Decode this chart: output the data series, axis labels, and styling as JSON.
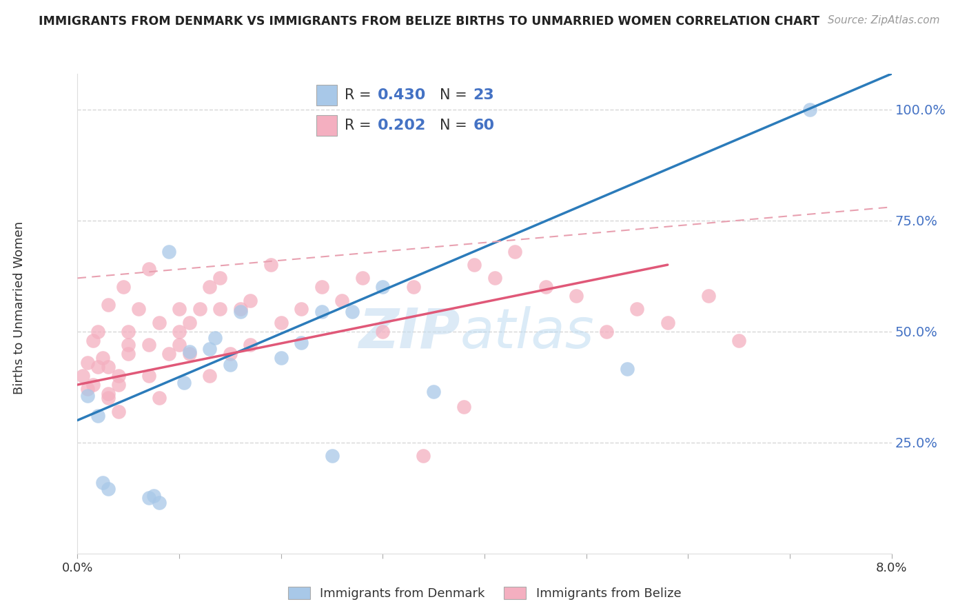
{
  "title": "IMMIGRANTS FROM DENMARK VS IMMIGRANTS FROM BELIZE BIRTHS TO UNMARRIED WOMEN CORRELATION CHART",
  "source": "Source: ZipAtlas.com",
  "ylabel": "Births to Unmarried Women",
  "xlabel_bottom_left": "0.0%",
  "xlabel_bottom_right": "8.0%",
  "xlim": [
    0.0,
    0.08
  ],
  "ylim": [
    0.0,
    1.08
  ],
  "yticks": [
    0.25,
    0.5,
    0.75,
    1.0
  ],
  "ytick_labels": [
    "25.0%",
    "50.0%",
    "75.0%",
    "100.0%"
  ],
  "legend_r1": "0.430",
  "legend_n1": "23",
  "legend_r2": "0.202",
  "legend_n2": "60",
  "legend_label1": "Immigrants from Denmark",
  "legend_label2": "Immigrants from Belize",
  "color_denmark": "#a8c8e8",
  "color_belize": "#f4afc0",
  "trendline_color_denmark": "#2b7bba",
  "trendline_color_belize": "#e05878",
  "trendline_color_belize_dashed": "#e8a0b0",
  "watermark_zip": "ZIP",
  "watermark_atlas": "atlas",
  "denmark_x": [
    0.001,
    0.002,
    0.0025,
    0.003,
    0.007,
    0.0075,
    0.008,
    0.009,
    0.0105,
    0.011,
    0.013,
    0.0135,
    0.015,
    0.016,
    0.02,
    0.022,
    0.024,
    0.025,
    0.027,
    0.03,
    0.035,
    0.054,
    0.072
  ],
  "denmark_y": [
    0.355,
    0.31,
    0.16,
    0.145,
    0.125,
    0.13,
    0.115,
    0.68,
    0.385,
    0.455,
    0.46,
    0.485,
    0.425,
    0.545,
    0.44,
    0.475,
    0.545,
    0.22,
    0.545,
    0.6,
    0.365,
    0.415,
    1.0
  ],
  "belize_x": [
    0.0005,
    0.001,
    0.001,
    0.0015,
    0.0015,
    0.002,
    0.002,
    0.0025,
    0.003,
    0.003,
    0.003,
    0.003,
    0.004,
    0.004,
    0.004,
    0.0045,
    0.005,
    0.005,
    0.005,
    0.006,
    0.007,
    0.007,
    0.007,
    0.008,
    0.008,
    0.009,
    0.01,
    0.01,
    0.01,
    0.011,
    0.011,
    0.012,
    0.013,
    0.013,
    0.014,
    0.014,
    0.015,
    0.016,
    0.017,
    0.017,
    0.019,
    0.02,
    0.022,
    0.024,
    0.026,
    0.028,
    0.03,
    0.033,
    0.034,
    0.038,
    0.039,
    0.041,
    0.043,
    0.046,
    0.049,
    0.052,
    0.055,
    0.058,
    0.062,
    0.065
  ],
  "belize_y": [
    0.4,
    0.37,
    0.43,
    0.38,
    0.48,
    0.42,
    0.5,
    0.44,
    0.35,
    0.36,
    0.42,
    0.56,
    0.32,
    0.38,
    0.4,
    0.6,
    0.45,
    0.47,
    0.5,
    0.55,
    0.4,
    0.47,
    0.64,
    0.35,
    0.52,
    0.45,
    0.47,
    0.5,
    0.55,
    0.45,
    0.52,
    0.55,
    0.4,
    0.6,
    0.55,
    0.62,
    0.45,
    0.55,
    0.47,
    0.57,
    0.65,
    0.52,
    0.55,
    0.6,
    0.57,
    0.62,
    0.5,
    0.6,
    0.22,
    0.33,
    0.65,
    0.62,
    0.68,
    0.6,
    0.58,
    0.5,
    0.55,
    0.52,
    0.58,
    0.48
  ],
  "dk_trend_x0": 0.0,
  "dk_trend_y0": 0.3,
  "dk_trend_x1": 0.08,
  "dk_trend_y1": 1.08,
  "bz_solid_trend_x0": 0.0,
  "bz_solid_trend_y0": 0.38,
  "bz_solid_trend_x1": 0.058,
  "bz_solid_trend_y1": 0.65,
  "bz_dash_trend_x0": 0.0,
  "bz_dash_trend_x1": 0.08,
  "bz_dash_trend_y0": 0.62,
  "bz_dash_trend_y1": 0.78,
  "xtick_positions": [
    0.0,
    0.01,
    0.02,
    0.03,
    0.04,
    0.05,
    0.06,
    0.07,
    0.08
  ]
}
